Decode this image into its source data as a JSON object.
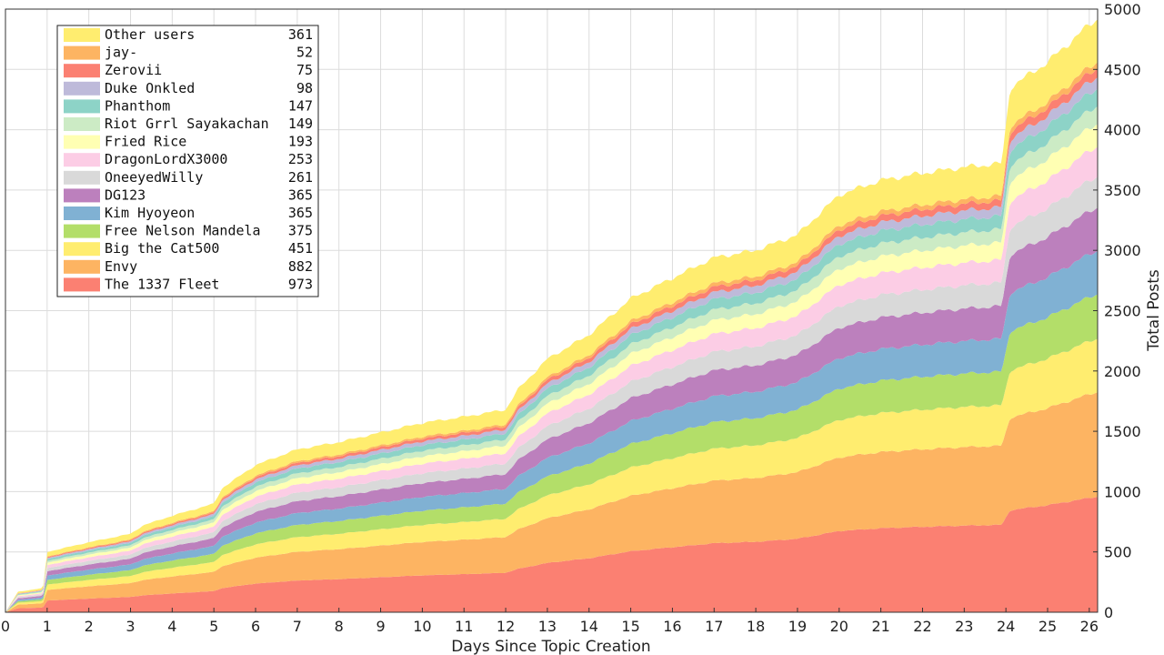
{
  "chart_data": {
    "type": "area",
    "stacked": true,
    "title": "",
    "xlabel": "Days Since Topic Creation",
    "ylabel": "Total Posts",
    "xlim": [
      0,
      26.2
    ],
    "ylim": [
      0,
      5000
    ],
    "x_ticks": [
      0,
      1,
      2,
      3,
      4,
      5,
      6,
      7,
      8,
      9,
      10,
      11,
      12,
      13,
      14,
      15,
      16,
      17,
      18,
      19,
      20,
      21,
      22,
      23,
      24,
      25,
      26
    ],
    "y_ticks": [
      0,
      500,
      1000,
      1500,
      2000,
      2500,
      3000,
      3500,
      4000,
      4500,
      5000
    ],
    "y_axis_side": "right",
    "grid": true,
    "legend_position": "top-left",
    "total_anchors": {
      "x": [
        0,
        0.3,
        0.9,
        1,
        2,
        3,
        3.3,
        4,
        5,
        5.2,
        6,
        7,
        8,
        9,
        10,
        11,
        12,
        12.3,
        13,
        14,
        15,
        16,
        17,
        18,
        19,
        20,
        21,
        22,
        23,
        23.9,
        24.1,
        25,
        26,
        26.2
      ],
      "y": [
        0,
        170,
        200,
        500,
        580,
        650,
        720,
        800,
        900,
        1030,
        1220,
        1350,
        1410,
        1490,
        1570,
        1620,
        1680,
        1850,
        2100,
        2300,
        2600,
        2770,
        2940,
        3000,
        3130,
        3460,
        3580,
        3640,
        3690,
        3720,
        4350,
        4560,
        4870,
        4920
      ]
    },
    "series": [
      {
        "name": "The 1337 Fleet",
        "final": 973,
        "color": "#fb8072"
      },
      {
        "name": "Envy",
        "final": 882,
        "color": "#fdb462"
      },
      {
        "name": "Big the Cat500",
        "final": 451,
        "color": "#ffed6f"
      },
      {
        "name": "Free Nelson Mandela",
        "final": 375,
        "color": "#b3de69"
      },
      {
        "name": "Kim Hyoyeon",
        "final": 365,
        "color": "#80b1d3"
      },
      {
        "name": "DG123",
        "final": 365,
        "color": "#bc80bd"
      },
      {
        "name": "OneeyedWilly",
        "final": 261,
        "color": "#d9d9d9"
      },
      {
        "name": "DragonLordX3000",
        "final": 253,
        "color": "#fccde5"
      },
      {
        "name": "Fried Rice",
        "final": 193,
        "color": "#ffffb3"
      },
      {
        "name": "Riot Grrl Sayakachan",
        "final": 149,
        "color": "#ccebc5"
      },
      {
        "name": "Phanthom",
        "final": 147,
        "color": "#8dd3c7"
      },
      {
        "name": "Duke Onkled",
        "final": 98,
        "color": "#bebada"
      },
      {
        "name": "Zerovii",
        "final": 75,
        "color": "#fb8072"
      },
      {
        "name": "jay-",
        "final": 52,
        "color": "#fdb462"
      },
      {
        "name": "Other users",
        "final": 361,
        "color": "#ffed6f"
      }
    ],
    "legend": [
      {
        "label": "Other users",
        "value": "361",
        "color": "#ffed6f"
      },
      {
        "label": "jay-",
        "value": "52",
        "color": "#fdb462"
      },
      {
        "label": "Zerovii",
        "value": "75",
        "color": "#fb8072"
      },
      {
        "label": "Duke Onkled",
        "value": "98",
        "color": "#bebada"
      },
      {
        "label": "Phanthom",
        "value": "147",
        "color": "#8dd3c7"
      },
      {
        "label": "Riot Grrl Sayakachan",
        "value": "149",
        "color": "#ccebc5"
      },
      {
        "label": "Fried Rice",
        "value": "193",
        "color": "#ffffb3"
      },
      {
        "label": "DragonLordX3000",
        "value": "253",
        "color": "#fccde5"
      },
      {
        "label": "OneeyedWilly",
        "value": "261",
        "color": "#d9d9d9"
      },
      {
        "label": "DG123",
        "value": "365",
        "color": "#bc80bd"
      },
      {
        "label": "Kim Hyoyeon",
        "value": "365",
        "color": "#80b1d3"
      },
      {
        "label": "Free Nelson Mandela",
        "value": "375",
        "color": "#b3de69"
      },
      {
        "label": "Big the Cat500",
        "value": "451",
        "color": "#ffed6f"
      },
      {
        "label": "Envy",
        "value": "882",
        "color": "#fdb462"
      },
      {
        "label": "The 1337 Fleet",
        "value": "973",
        "color": "#fb8072"
      }
    ]
  }
}
